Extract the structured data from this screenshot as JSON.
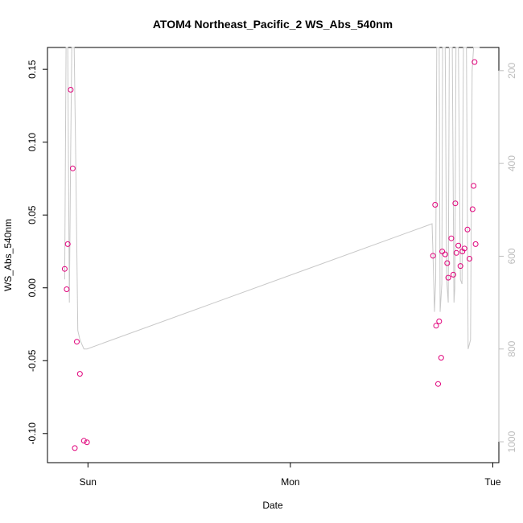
{
  "chart_data": {
    "type": "scatter",
    "title": "ATOM4 Northeast_Pacific_2 WS_Abs_540nm",
    "xlabel": "Date",
    "ylabel": "WS_Abs_540nm",
    "x_ticks": [
      {
        "label": "Sun",
        "value": 0
      },
      {
        "label": "Mon",
        "value": 1
      },
      {
        "label": "Tue",
        "value": 2
      }
    ],
    "xlim": [
      -0.2,
      2.03
    ],
    "ylim": [
      -0.12,
      0.165
    ],
    "y_ticks": [
      -0.1,
      -0.05,
      0.0,
      0.05,
      0.1,
      0.15
    ],
    "y_tick_labels": [
      "-0.10",
      "-0.05",
      "0.00",
      "0.05",
      "0.10",
      "0.15"
    ],
    "grid": false,
    "legend": "none",
    "point_color": "#e0007a",
    "secondary_axis": {
      "ticks": [
        200,
        400,
        600,
        800,
        1000
      ],
      "tick_labels": [
        "200",
        "400",
        "600",
        "800",
        "1000"
      ],
      "range_at_bottom": 1045,
      "range_at_top": 150,
      "color": "#bdbdbd",
      "line_color": "#c8c8c8"
    },
    "series": [
      {
        "values": [
          [
            -0.115,
            0.013
          ],
          [
            -0.105,
            -0.001
          ],
          [
            -0.1,
            0.03
          ],
          [
            -0.085,
            0.136
          ],
          [
            -0.075,
            0.082
          ],
          [
            -0.065,
            -0.11
          ],
          [
            -0.055,
            -0.037
          ],
          [
            -0.04,
            -0.059
          ],
          [
            -0.02,
            -0.105
          ],
          [
            -0.005,
            -0.106
          ],
          [
            1.705,
            0.022
          ],
          [
            1.715,
            0.057
          ],
          [
            1.72,
            -0.026
          ],
          [
            1.73,
            -0.066
          ],
          [
            1.735,
            -0.023
          ],
          [
            1.745,
            -0.048
          ],
          [
            1.75,
            0.025
          ],
          [
            1.765,
            0.023
          ],
          [
            1.775,
            0.017
          ],
          [
            1.78,
            0.007
          ],
          [
            1.795,
            0.034
          ],
          [
            1.805,
            0.009
          ],
          [
            1.815,
            0.058
          ],
          [
            1.82,
            0.024
          ],
          [
            1.83,
            0.029
          ],
          [
            1.84,
            0.015
          ],
          [
            1.85,
            0.025
          ],
          [
            1.86,
            0.027
          ],
          [
            1.875,
            0.04
          ],
          [
            1.885,
            0.02
          ],
          [
            1.9,
            0.054
          ],
          [
            1.905,
            0.07
          ],
          [
            1.91,
            0.155
          ],
          [
            1.915,
            0.03
          ]
        ]
      }
    ],
    "secondary_series": [
      {
        "values": [
          [
            -0.115,
            650
          ],
          [
            -0.108,
            150
          ],
          [
            -0.1,
            150
          ],
          [
            -0.092,
            700
          ],
          [
            -0.086,
            400
          ],
          [
            -0.08,
            150
          ],
          [
            -0.068,
            150
          ],
          [
            -0.06,
            400
          ],
          [
            -0.05,
            760
          ],
          [
            -0.04,
            780
          ],
          [
            -0.02,
            800
          ],
          [
            -0.005,
            800
          ],
          [
            1.7,
            530
          ],
          [
            1.705,
            600
          ],
          [
            1.712,
            720
          ],
          [
            1.718,
            650
          ],
          [
            1.723,
            150
          ],
          [
            1.735,
            150
          ],
          [
            1.74,
            720
          ],
          [
            1.748,
            660
          ],
          [
            1.752,
            150
          ],
          [
            1.765,
            150
          ],
          [
            1.772,
            650
          ],
          [
            1.78,
            700
          ],
          [
            1.785,
            150
          ],
          [
            1.8,
            150
          ],
          [
            1.808,
            700
          ],
          [
            1.812,
            670
          ],
          [
            1.818,
            150
          ],
          [
            1.83,
            150
          ],
          [
            1.84,
            650
          ],
          [
            1.848,
            660
          ],
          [
            1.855,
            150
          ],
          [
            1.87,
            150
          ],
          [
            1.878,
            800
          ],
          [
            1.89,
            780
          ],
          [
            1.898,
            200
          ],
          [
            1.905,
            150
          ],
          [
            1.935,
            150
          ]
        ]
      }
    ]
  }
}
